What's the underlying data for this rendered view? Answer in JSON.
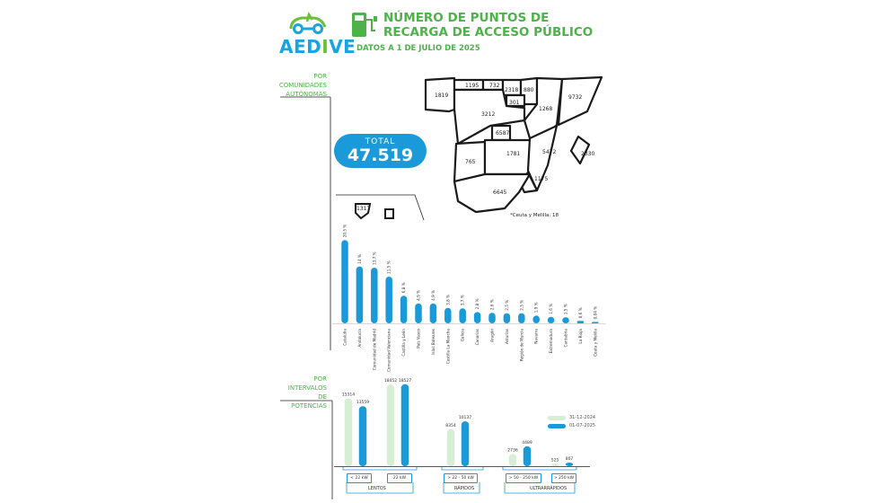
{
  "header": {
    "logo_text_pre": "AED",
    "logo_text_i": "I",
    "logo_text_post": "VE",
    "title_line1": "NÚMERO DE PUNTOS DE",
    "title_line2": "RECARGA DE ACCESO PÚBLICO",
    "subtitle": "DATOS A 1 DE JULIO DE 2025"
  },
  "section1": {
    "line1": "POR",
    "line2": "COMUNIDADES",
    "line3": "AUTÓNOMAS"
  },
  "section2": {
    "line1": "POR",
    "line2": "INTERVALOS",
    "line3": "DE",
    "line4": "POTENCIAS"
  },
  "total": {
    "label": "TOTAL",
    "value": "47.519"
  },
  "map": {
    "labels": [
      "1819",
      "1195",
      "732",
      "2318",
      "880",
      "9732",
      "301",
      "1268",
      "3212",
      "6587",
      "765",
      "1781",
      "5472",
      "2330",
      "1175",
      "6645",
      "1317"
    ],
    "note": "*Ceuta y Melilla: 18"
  },
  "colors": {
    "accent": "#1a9ad9",
    "green": "#4db348",
    "light_green": "#d6eed4",
    "dark": "#1f1f1f"
  },
  "chart_data": [
    {
      "type": "bar",
      "categories": [
        "Cataluña",
        "Andalucía",
        "Comunidad de Madrid",
        "Comunidad Valenciana",
        "Castilla y León",
        "País Vasco",
        "Islas Baleares",
        "Castilla La Mancha",
        "Galicia",
        "Canarias",
        "Aragón",
        "Asturias",
        "Región de Murcia",
        "Navarra",
        "Extremadura",
        "Cantabria",
        "La Rioja",
        "Ceuta y Melilla"
      ],
      "values": [
        20.5,
        14,
        13.7,
        11.5,
        6.8,
        4.9,
        4.9,
        3.8,
        3.7,
        2.8,
        2.6,
        2.5,
        2.5,
        1.9,
        1.6,
        1.5,
        0.6,
        0.04
      ],
      "value_labels": [
        "20,5 %",
        "14 %",
        "13,7 %",
        "11,5 %",
        "6,8 %",
        "4,9 %",
        "4,9 %",
        "3,8 %",
        "3,7 %",
        "2,8 %",
        "2,6 %",
        "2,5 %",
        "2,5 %",
        "1,9 %",
        "1,6 %",
        "1,5 %",
        "0,6 %",
        "0,04 %"
      ],
      "ylim": [
        0,
        21
      ]
    },
    {
      "type": "bar",
      "categories": [
        "< 22 kW",
        "22 kW",
        "> 22 - 50 kW",
        "> 50 - 250 kW",
        "> 250 kW"
      ],
      "groups": [
        {
          "label": "LENTOS",
          "categories": [
            "< 22 kW",
            "22 kW"
          ]
        },
        {
          "label": "RÁPIDOS",
          "categories": [
            "> 22 - 50 kW"
          ]
        },
        {
          "label": "ULTRARRÁPIDOS",
          "categories": [
            "> 50 - 250 kW",
            "> 250 kW"
          ]
        }
      ],
      "series": [
        {
          "name": "31-12-2024",
          "values": [
            15314,
            18452,
            8354,
            2736,
            525
          ]
        },
        {
          "name": "01-07-2025",
          "values": [
            13559,
            18527,
            10137,
            4489,
            807
          ]
        }
      ],
      "ylim": [
        0,
        19500
      ]
    }
  ]
}
